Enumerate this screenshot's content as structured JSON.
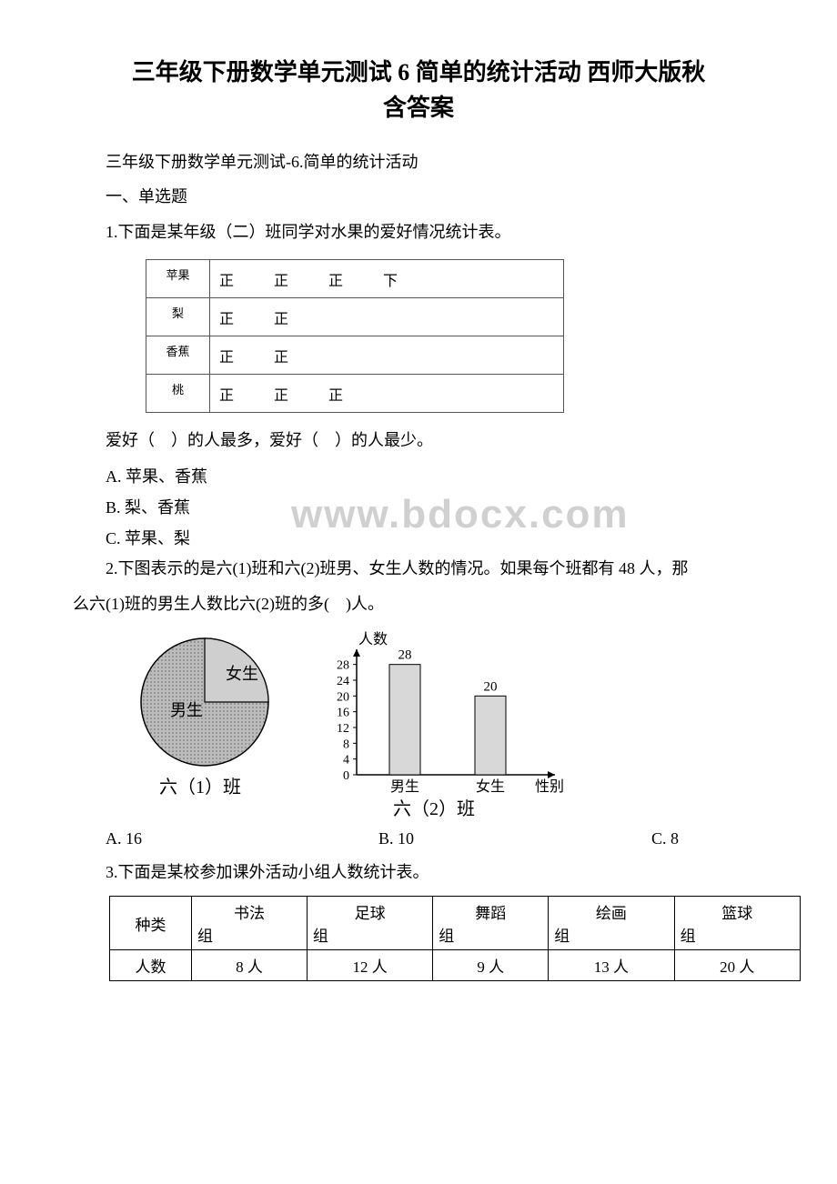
{
  "title_line1": "三年级下册数学单元测试 6 简单的统计活动 西师大版秋",
  "title_line2": "含答案",
  "subtitle": "三年级下册数学单元测试-6.简单的统计活动",
  "section1": "一、单选题",
  "q1": {
    "stem": "1.下面是某年级（二）班同学对水果的爱好情况统计表。",
    "rows": [
      {
        "label": "苹果",
        "tally": "正　正　正　下"
      },
      {
        "label": "梨",
        "tally": "正　正"
      },
      {
        "label": "香蕉",
        "tally": "正　正"
      },
      {
        "label": "桃",
        "tally": "正　正　正"
      }
    ],
    "ask": "爱好（　）的人最多，爱好（　）的人最少。",
    "optA": "A. 苹果、香蕉",
    "optB": "B. 梨、香蕉",
    "optC": "C. 苹果、梨",
    "watermark": "www.bdocx.com"
  },
  "q2": {
    "stem1": "2.下图表示的是六(1)班和六(2)班男、女生人数的情况。如果每个班都有 48 人，那",
    "stem2": "么六(1)班的男生人数比六(2)班的多(　)人。",
    "pie": {
      "label_girl": "女生",
      "label_boy": "男生",
      "caption": "六（1）班",
      "boy_angle_deg": 270,
      "colors": {
        "fill": "#bdbdbd",
        "line": "#000000",
        "hatch": "#8a8a8a"
      }
    },
    "bar": {
      "ylabel": "人数",
      "xlabel": "性别",
      "caption": "六（2）班",
      "yticks": [
        0,
        4,
        8,
        12,
        16,
        20,
        24,
        28
      ],
      "bars": [
        {
          "label": "男生",
          "value": 28,
          "color": "#d8d8d8"
        },
        {
          "label": "女生",
          "value": 20,
          "color": "#d8d8d8"
        }
      ],
      "ylim": [
        0,
        30
      ],
      "axis_color": "#000000",
      "font_size": 14
    },
    "optA": "A. 16",
    "optB": "B. 10",
    "optC": "C. 8"
  },
  "q3": {
    "stem": "3.下面是某校参加课外活动小组人数统计表。",
    "header_first": "种类",
    "cols": [
      "书法",
      "足球",
      "舞蹈",
      "绘画",
      "篮球"
    ],
    "col_suffix": "组",
    "row2_first": "人数",
    "values": [
      "8 人",
      "12 人",
      "9 人",
      "13 人",
      "20 人"
    ]
  }
}
